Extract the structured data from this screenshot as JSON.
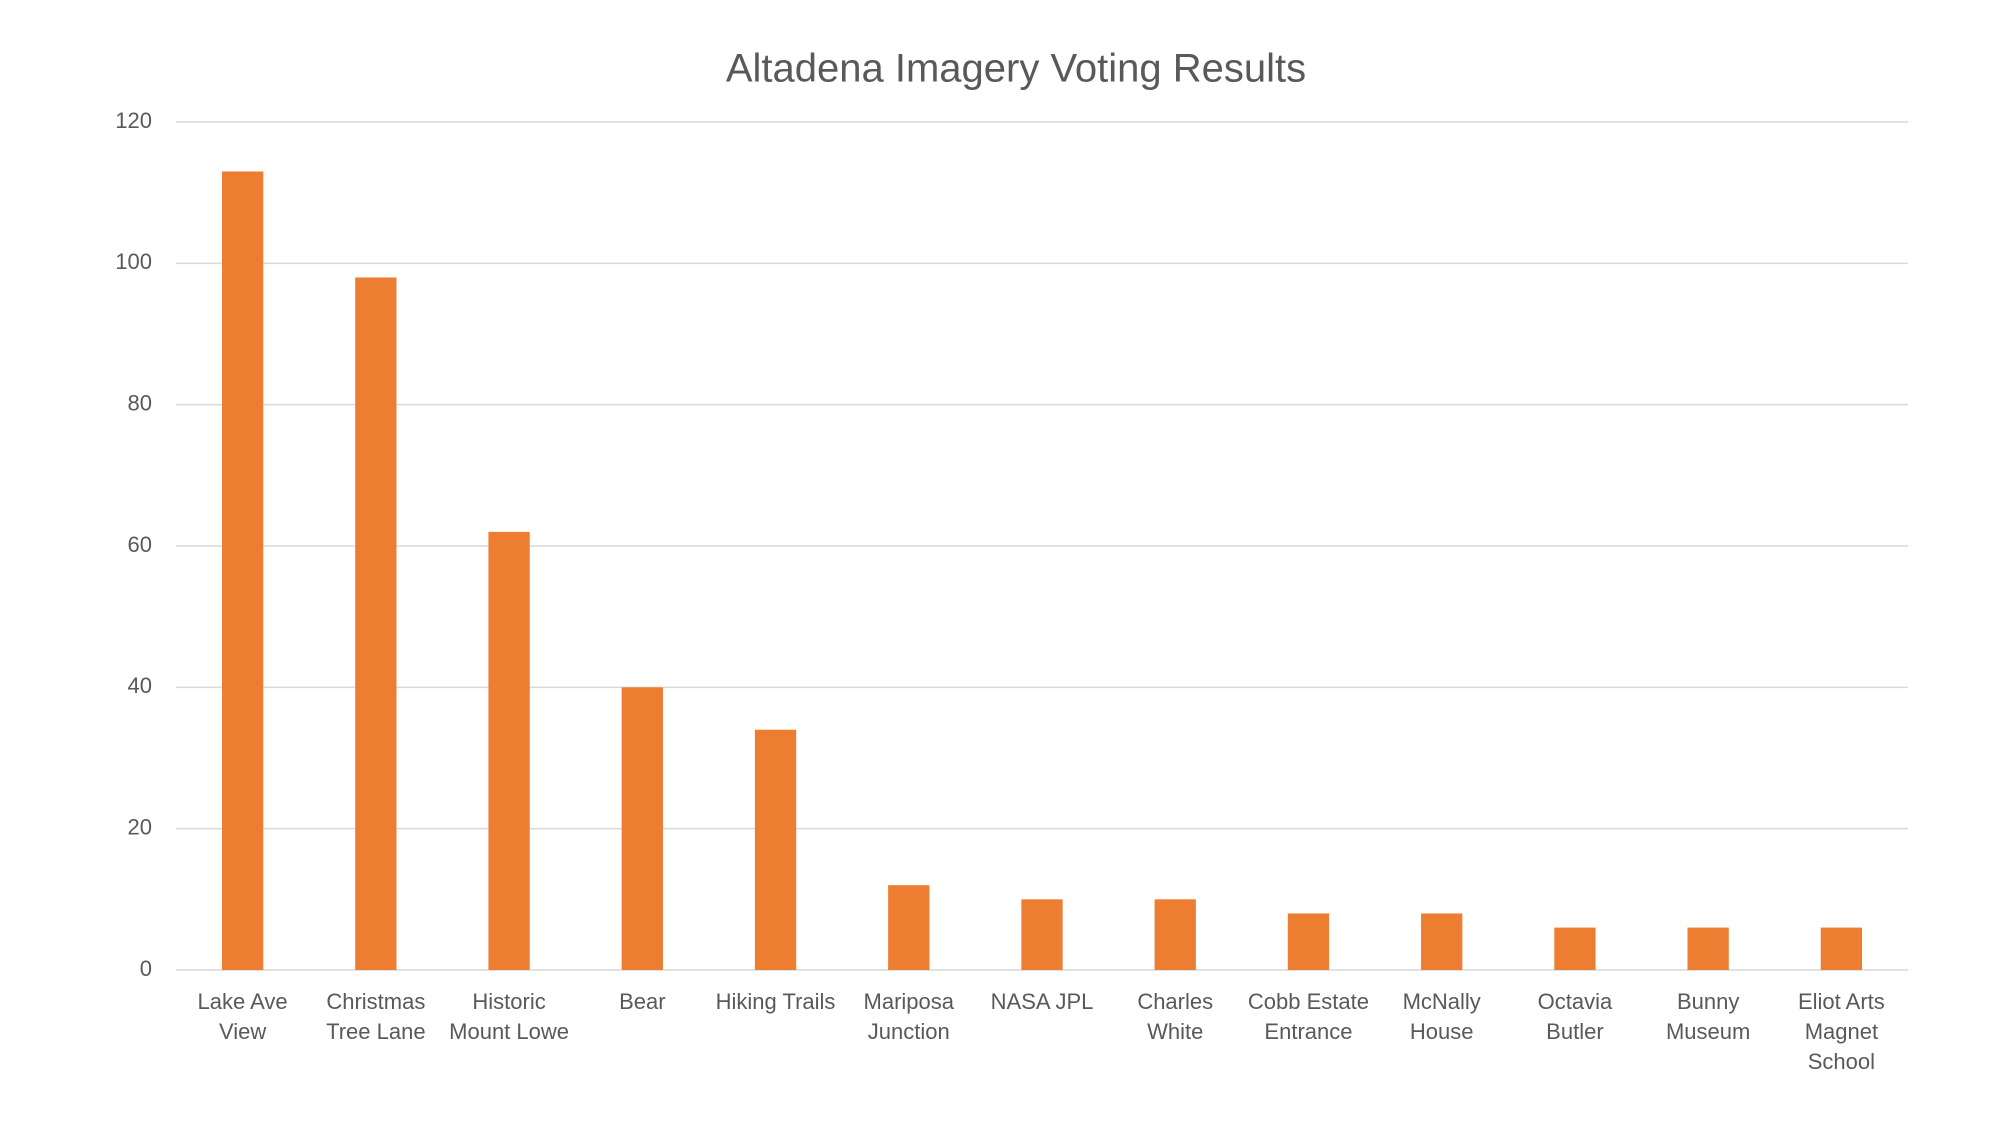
{
  "chart_data": {
    "type": "bar",
    "title": "Altadena Imagery Voting Results",
    "categories": [
      "Lake Ave View",
      "Christmas Tree Lane",
      "Historic Mount Lowe",
      "Bear",
      "Hiking Trails",
      "Mariposa Junction",
      "NASA JPL",
      "Charles White",
      "Cobb Estate Entrance",
      "McNally House",
      "Octavia Butler",
      "Bunny Museum",
      "Eliot Arts Magnet School"
    ],
    "values": [
      113,
      98,
      62,
      40,
      34,
      12,
      10,
      10,
      8,
      8,
      6,
      6,
      6
    ],
    "color": "#ed7d31",
    "ylim": [
      0,
      120
    ],
    "yticks": [
      0,
      20,
      40,
      60,
      80,
      100,
      120
    ],
    "grid": true
  }
}
